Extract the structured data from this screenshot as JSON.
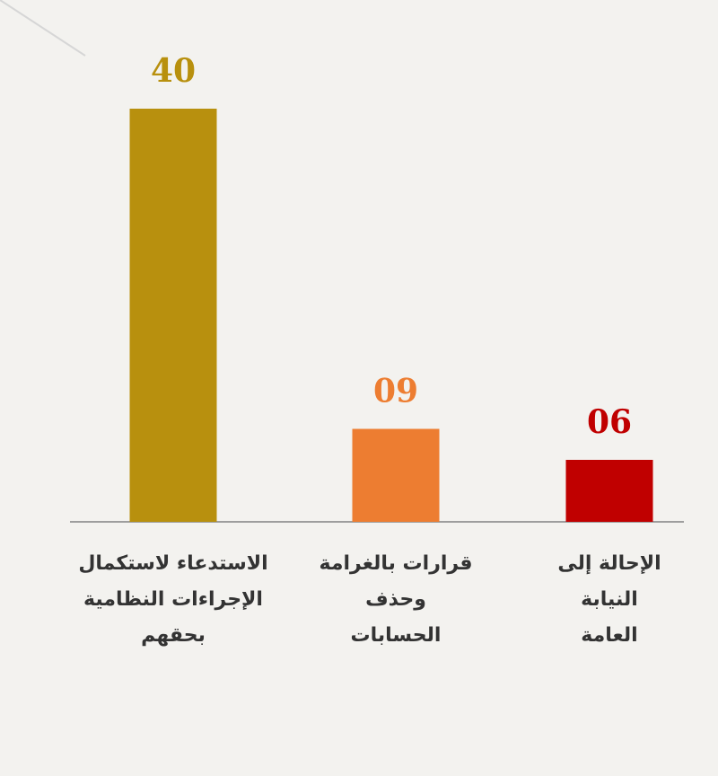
{
  "chart_data": {
    "type": "bar",
    "categories": [
      [
        "الاستدعاء لاستكمال",
        "الإجراءات النظامية",
        "بحقهم"
      ],
      [
        "قرارات بالغرامة",
        "وحذف",
        "الحسابات"
      ],
      [
        "الإحالة إلى",
        "النيابة",
        "العامة"
      ]
    ],
    "values": [
      40,
      9,
      6
    ],
    "value_labels": [
      "40",
      "09",
      "06"
    ],
    "colors": [
      "#b8900e",
      "#ed7d31",
      "#c00000"
    ],
    "title": "",
    "xlabel": "",
    "ylabel": "",
    "ylim": [
      0,
      40
    ],
    "grid": false,
    "legend": "none"
  }
}
